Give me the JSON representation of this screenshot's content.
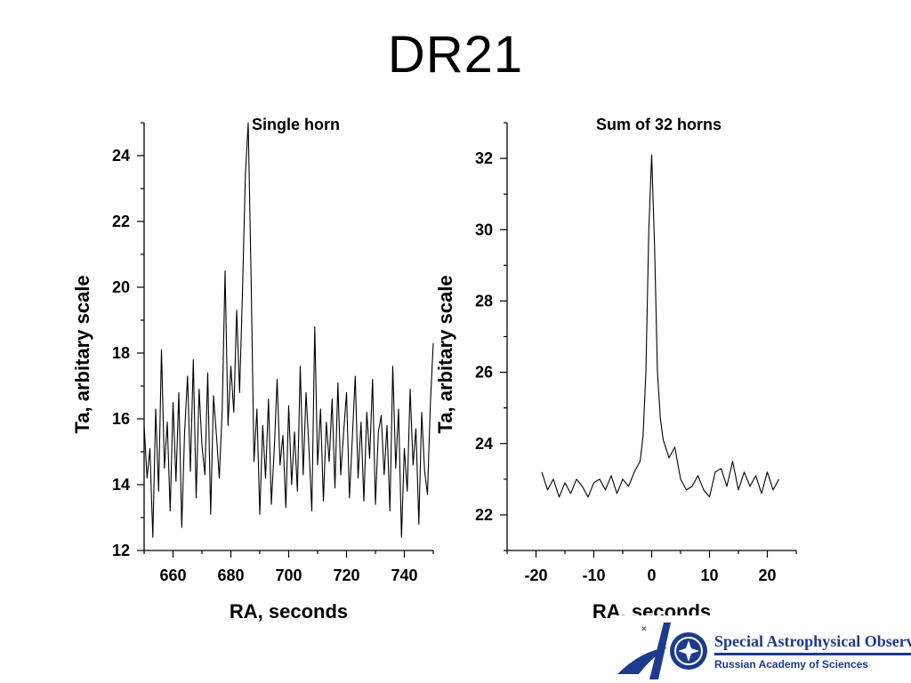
{
  "slide": {
    "title": "DR21"
  },
  "colors": {
    "line": "#000000",
    "logo_blue": "#1d3b8a"
  },
  "chart_data": [
    {
      "type": "line",
      "title": "Single horn",
      "xlabel": "RA, seconds",
      "ylabel": "Ta, arbitary scale",
      "xlim": [
        650,
        750
      ],
      "ylim": [
        12,
        25
      ],
      "xticks": [
        660,
        680,
        700,
        720,
        740
      ],
      "yticks": [
        12,
        14,
        16,
        18,
        20,
        22,
        24
      ],
      "grid": false,
      "series": [
        {
          "x": [
            650,
            651,
            652,
            653,
            654,
            655,
            656,
            657,
            658,
            659,
            660,
            661,
            662,
            663,
            664,
            665,
            666,
            667,
            668,
            669,
            670,
            671,
            672,
            673,
            674,
            675,
            676,
            677,
            678,
            679,
            680,
            681,
            682,
            683,
            684,
            685,
            686,
            687,
            688,
            689,
            690,
            691,
            692,
            693,
            694,
            695,
            696,
            697,
            698,
            699,
            700,
            701,
            702,
            703,
            704,
            705,
            706,
            707,
            708,
            709,
            710,
            711,
            712,
            713,
            714,
            715,
            716,
            717,
            718,
            719,
            720,
            721,
            722,
            723,
            724,
            725,
            726,
            727,
            728,
            729,
            730,
            731,
            732,
            733,
            734,
            735,
            736,
            737,
            738,
            739,
            740,
            741,
            742,
            743,
            744,
            745,
            746,
            747,
            748,
            749,
            750
          ],
          "y": [
            15.8,
            14.2,
            15.1,
            12.4,
            16.3,
            13.8,
            18.1,
            14.5,
            15.9,
            13.2,
            16.5,
            14.1,
            16.8,
            12.7,
            15.6,
            17.3,
            14.4,
            17.8,
            13.6,
            16.9,
            15.2,
            14.3,
            17.4,
            13.1,
            16.7,
            15.5,
            14.2,
            16.3,
            20.5,
            15.8,
            17.6,
            16.2,
            19.3,
            16.8,
            19.8,
            23.4,
            25.0,
            20.2,
            14.7,
            16.3,
            13.1,
            15.8,
            14.2,
            16.6,
            13.4,
            15.1,
            17.2,
            14.6,
            15.5,
            13.3,
            16.4,
            14.0,
            15.6,
            13.8,
            17.6,
            14.3,
            16.8,
            15.1,
            13.2,
            18.8,
            14.6,
            16.3,
            13.5,
            15.9,
            14.7,
            16.6,
            13.9,
            17.1,
            14.3,
            15.6,
            16.8,
            13.6,
            15.4,
            17.3,
            14.2,
            15.9,
            13.5,
            16.2,
            14.8,
            17.2,
            13.4,
            15.6,
            16.1,
            14.3,
            15.8,
            13.2,
            17.6,
            14.5,
            16.3,
            12.4,
            15.1,
            13.8,
            16.9,
            14.6,
            15.7,
            12.8,
            16.2,
            14.4,
            13.7,
            16.5,
            18.3
          ]
        }
      ]
    },
    {
      "type": "line",
      "title": "Sum of 32 horns",
      "xlabel": "RA, seconds",
      "ylabel": "Ta, arbitary scale",
      "xlim": [
        -25,
        25
      ],
      "ylim": [
        21,
        33
      ],
      "xticks": [
        -20,
        -10,
        0,
        10,
        20
      ],
      "yticks": [
        22,
        24,
        26,
        28,
        30,
        32
      ],
      "grid": false,
      "series": [
        {
          "x": [
            -19,
            -18,
            -17,
            -16,
            -15,
            -14,
            -13,
            -12,
            -11,
            -10,
            -9,
            -8,
            -7,
            -6,
            -5,
            -4,
            -3,
            -2,
            -1.5,
            -1,
            -0.5,
            0,
            0.5,
            1,
            1.5,
            2,
            3,
            4,
            5,
            6,
            7,
            8,
            9,
            10,
            11,
            12,
            13,
            14,
            15,
            16,
            17,
            18,
            19,
            20,
            21,
            22
          ],
          "y": [
            23.2,
            22.7,
            23.0,
            22.5,
            22.9,
            22.6,
            23.0,
            22.8,
            22.5,
            22.9,
            23.0,
            22.7,
            23.1,
            22.6,
            23.0,
            22.8,
            23.2,
            23.5,
            24.2,
            26.0,
            30.0,
            32.1,
            29.5,
            26.0,
            24.7,
            24.1,
            23.6,
            23.9,
            23.0,
            22.7,
            22.8,
            23.1,
            22.7,
            22.5,
            23.2,
            23.3,
            22.8,
            23.5,
            22.7,
            23.2,
            22.8,
            23.1,
            22.6,
            23.2,
            22.7,
            23.0
          ]
        }
      ]
    }
  ],
  "logo": {
    "name": "Special Astrophysical Observatory",
    "subtitle": "Russian Academy of Sciences"
  }
}
